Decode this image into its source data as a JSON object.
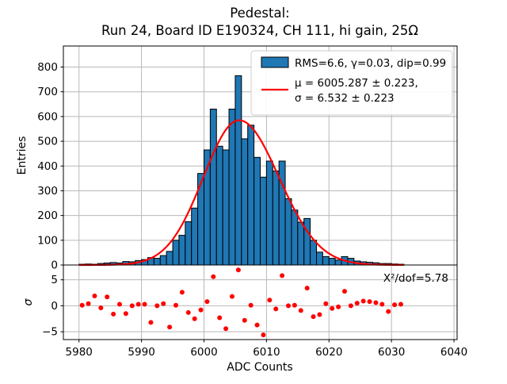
{
  "figure": {
    "title_line1": "Pedestal:",
    "title_line2": "Run 24, Board ID E190324, CH 111, hi gain, 25Ω"
  },
  "main_plot": {
    "ylabel": "Entries",
    "y_ticks": [
      0,
      100,
      200,
      300,
      400,
      500,
      600,
      700,
      800
    ],
    "x_ticks": [
      5980,
      5990,
      6000,
      6010,
      6020,
      6030,
      6040
    ]
  },
  "legend": {
    "hist_label": "RMS=6.6, γ=0.03, dip=0.99",
    "fit_label_line1": "μ = 6005.287 ± 0.223,",
    "fit_label_line2": "σ = 6.532 ± 0.223"
  },
  "residual_plot": {
    "ylabel": "σ",
    "xlabel": "ADC Counts",
    "y_ticks": [
      {
        "v": -5,
        "label": "−5"
      },
      {
        "v": 0,
        "label": "0"
      },
      {
        "v": 5,
        "label": "5"
      }
    ],
    "annotation": "X²/dof=5.78"
  },
  "colors": {
    "bar_fill": "#1f77b4",
    "bar_edge": "#000000",
    "fit_line": "#ff0000",
    "residual_dot": "#ff0000",
    "grid": "#b8b8b8",
    "spine": "#000000",
    "legend_border": "#cccccc"
  },
  "chart_data": {
    "type": "bar",
    "subtype": "histogram-with-gaussian-fit-and-residuals",
    "title": "Pedestal: Run 24, Board ID E190324, CH 111, hi gain, 25Ω",
    "xlabel": "ADC Counts",
    "ylabel_main": "Entries",
    "ylabel_residual": "σ",
    "xlim": [
      5977.5,
      6040.5
    ],
    "main_ylim": [
      0,
      885
    ],
    "res_ylim": [
      -6.5,
      7.85
    ],
    "grid": true,
    "legend_position": "upper right",
    "histogram": {
      "bin_width": 1,
      "bin_start": 5980,
      "counts": [
        3,
        4,
        3,
        6,
        8,
        10,
        8,
        14,
        13,
        18,
        22,
        30,
        27,
        38,
        55,
        100,
        120,
        175,
        230,
        370,
        465,
        630,
        480,
        465,
        630,
        765,
        510,
        565,
        435,
        355,
        420,
        380,
        420,
        268,
        222,
        173,
        188,
        100,
        52,
        34,
        27,
        20,
        34,
        27,
        16,
        13,
        11,
        9,
        6,
        6,
        4,
        3
      ]
    },
    "fit": {
      "type": "gaussian",
      "mu": 6005.287,
      "mu_err": 0.223,
      "sigma": 6.532,
      "sigma_err": 0.223,
      "rms": 6.6,
      "gamma": 0.03,
      "dip": 0.99,
      "chi2_per_dof": 5.78,
      "peak_entries": 585
    },
    "fit_curve_draw": {
      "amplitude": 585,
      "mode": 6005.6,
      "sigma_left": 5.7,
      "sigma_right": 6.4,
      "x_start": 5980,
      "x_end": 6032,
      "step": 0.25
    },
    "residuals": {
      "points": [
        [
          5980.5,
          0.1
        ],
        [
          5981.5,
          0.4
        ],
        [
          5982.5,
          1.9
        ],
        [
          5983.5,
          -0.4
        ],
        [
          5984.5,
          1.7
        ],
        [
          5985.5,
          -1.6
        ],
        [
          5986.5,
          0.3
        ],
        [
          5987.5,
          -1.5
        ],
        [
          5988.5,
          0.0
        ],
        [
          5989.5,
          0.3
        ],
        [
          5990.5,
          0.3
        ],
        [
          5991.5,
          -3.2
        ],
        [
          5992.5,
          0.0
        ],
        [
          5993.5,
          0.4
        ],
        [
          5994.5,
          -4.1
        ],
        [
          5995.5,
          0.1
        ],
        [
          5996.5,
          2.6
        ],
        [
          5997.5,
          -1.3
        ],
        [
          5998.5,
          -2.5
        ],
        [
          5999.5,
          -0.8
        ],
        [
          6000.5,
          0.8
        ],
        [
          6001.5,
          5.6
        ],
        [
          6002.5,
          -2.3
        ],
        [
          6003.5,
          -4.4
        ],
        [
          6004.5,
          1.8
        ],
        [
          6005.5,
          6.9
        ],
        [
          6006.5,
          -2.8
        ],
        [
          6007.5,
          0.1
        ],
        [
          6008.5,
          -3.7
        ],
        [
          6009.5,
          -5.6
        ],
        [
          6010.5,
          1.1
        ],
        [
          6011.5,
          -0.6
        ],
        [
          6012.5,
          5.8
        ],
        [
          6013.5,
          0.0
        ],
        [
          6014.5,
          0.1
        ],
        [
          6015.5,
          -0.9
        ],
        [
          6016.5,
          3.4
        ],
        [
          6017.5,
          -2.1
        ],
        [
          6018.5,
          -1.7
        ],
        [
          6019.5,
          0.4
        ],
        [
          6020.5,
          -0.5
        ],
        [
          6021.5,
          -0.2
        ],
        [
          6022.5,
          2.8
        ],
        [
          6023.5,
          0.0
        ],
        [
          6024.5,
          0.5
        ],
        [
          6025.5,
          0.9
        ],
        [
          6026.5,
          0.8
        ],
        [
          6027.5,
          0.6
        ],
        [
          6028.5,
          0.3
        ],
        [
          6029.5,
          -1.1
        ],
        [
          6030.5,
          0.2
        ],
        [
          6031.5,
          0.3
        ]
      ]
    }
  }
}
